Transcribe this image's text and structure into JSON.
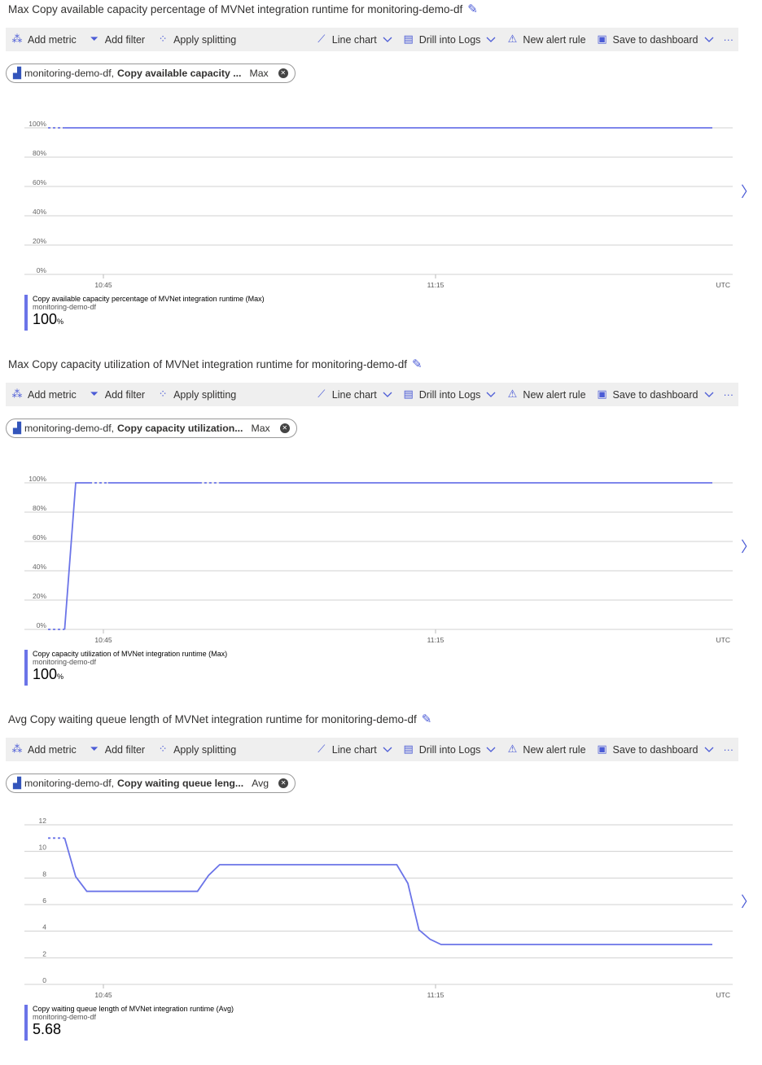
{
  "toolbar": {
    "add_metric": "Add metric",
    "add_filter": "Add filter",
    "apply_splitting": "Apply splitting",
    "line_chart": "Line chart",
    "drill_logs": "Drill into Logs",
    "new_alert": "New alert rule",
    "save_dashboard": "Save to dashboard",
    "more": "···"
  },
  "colors": {
    "series": "#6b74e8",
    "accent": "#4b5bd6",
    "grid": "#d0d0d0"
  },
  "panels": [
    {
      "title": "Max Copy available capacity percentage of MVNet integration runtime for monitoring-demo-df",
      "chip": {
        "resource": "monitoring-demo-df,",
        "metric": "Copy available capacity ...",
        "agg": "Max"
      },
      "legend": {
        "name": "Copy available capacity percentage of MVNet integration runtime (Max)",
        "resource": "monitoring-demo-df",
        "value": "100",
        "unit": "%"
      },
      "chart_data": {
        "type": "line",
        "y_ticks": [
          "0%",
          "20%",
          "40%",
          "60%",
          "80%",
          "100%"
        ],
        "ylim": [
          0,
          100
        ],
        "x_ticks": [
          "10:45",
          "11:15"
        ],
        "timezone": "UTC",
        "xlim": [
          "10:38",
          "11:42"
        ],
        "segments": [
          {
            "dashed": true,
            "points": [
              [
                "10:40",
                100
              ],
              [
                "10:41:30",
                100
              ]
            ]
          },
          {
            "dashed": false,
            "points": [
              [
                "10:41:30",
                100
              ],
              [
                "11:40",
                100
              ]
            ]
          }
        ]
      }
    },
    {
      "title": "Max Copy capacity utilization of MVNet integration runtime for monitoring-demo-df",
      "chip": {
        "resource": "monitoring-demo-df,",
        "metric": "Copy capacity utilization...",
        "agg": "Max"
      },
      "legend": {
        "name": "Copy capacity utilization of MVNet integration runtime (Max)",
        "resource": "monitoring-demo-df",
        "value": "100",
        "unit": "%"
      },
      "chart_data": {
        "type": "line",
        "y_ticks": [
          "0%",
          "20%",
          "40%",
          "60%",
          "80%",
          "100%"
        ],
        "ylim": [
          0,
          100
        ],
        "x_ticks": [
          "10:45",
          "11:15"
        ],
        "timezone": "UTC",
        "xlim": [
          "10:38",
          "11:42"
        ],
        "segments": [
          {
            "dashed": true,
            "points": [
              [
                "10:40",
                0
              ],
              [
                "10:41:30",
                0
              ]
            ]
          },
          {
            "dashed": false,
            "points": [
              [
                "10:41:30",
                0
              ],
              [
                "10:42:30",
                100
              ],
              [
                "10:43:45",
                100
              ]
            ]
          },
          {
            "dashed": true,
            "points": [
              [
                "10:43:45",
                100
              ],
              [
                "10:45:25",
                100
              ]
            ]
          },
          {
            "dashed": false,
            "points": [
              [
                "10:45:25",
                100
              ],
              [
                "10:53:40",
                100
              ]
            ]
          },
          {
            "dashed": true,
            "points": [
              [
                "10:53:40",
                100
              ],
              [
                "10:55:30",
                100
              ]
            ]
          },
          {
            "dashed": false,
            "points": [
              [
                "10:55:30",
                100
              ],
              [
                "11:40",
                100
              ]
            ]
          }
        ]
      }
    },
    {
      "title": "Avg Copy waiting queue length of MVNet integration runtime for monitoring-demo-df",
      "chip": {
        "resource": "monitoring-demo-df,",
        "metric": "Copy waiting queue leng...",
        "agg": "Avg"
      },
      "legend": {
        "name": "Copy waiting queue length of MVNet integration runtime (Avg)",
        "resource": "monitoring-demo-df",
        "value": "5.68",
        "unit": ""
      },
      "chart_data": {
        "type": "line",
        "y_ticks": [
          "0",
          "2",
          "4",
          "6",
          "8",
          "10",
          "12"
        ],
        "ylim": [
          0,
          12
        ],
        "x_ticks": [
          "10:45",
          "11:15"
        ],
        "timezone": "UTC",
        "xlim": [
          "10:38",
          "11:42"
        ],
        "segments": [
          {
            "dashed": true,
            "points": [
              [
                "10:40",
                11
              ],
              [
                "10:41:30",
                11
              ]
            ]
          },
          {
            "dashed": false,
            "points": [
              [
                "10:41:30",
                11
              ],
              [
                "10:42:30",
                8.1
              ],
              [
                "10:43:30",
                7
              ],
              [
                "10:53:30",
                7
              ],
              [
                "10:54:30",
                8.2
              ],
              [
                "10:55:30",
                9
              ],
              [
                "11:11:30",
                9
              ],
              [
                "11:12:30",
                7.6
              ],
              [
                "11:13:30",
                4.1
              ],
              [
                "11:14:30",
                3.4
              ],
              [
                "11:15:30",
                3
              ],
              [
                "11:40",
                3
              ]
            ]
          }
        ]
      }
    }
  ]
}
